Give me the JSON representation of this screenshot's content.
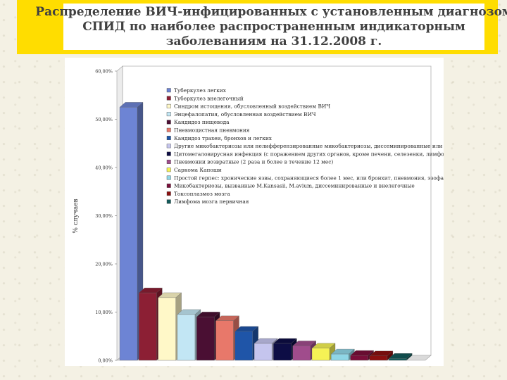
{
  "slide": {
    "title_lines": [
      "Распределение ВИЧ-инфицированных с установленным диагнозом",
      "СПИД по наиболее распространенным индикаторным",
      "заболеваниям на 31.12.2008 г."
    ]
  },
  "chart_data": {
    "type": "bar",
    "ylabel": "% случаев",
    "ylim": [
      0,
      60
    ],
    "yticks": [
      "0,00%",
      "10,00%",
      "20,00%",
      "30,00%",
      "40,00%",
      "50,00%",
      "60,00%"
    ],
    "grid": false,
    "legend_position": "top-right",
    "series": [
      {
        "name": "Туберкулез легких",
        "value": 52.5,
        "color": "#6d84d4"
      },
      {
        "name": "Туберкулез внелегочный",
        "value": 14.0,
        "color": "#8c1f34"
      },
      {
        "name": "Синдром истощения, обусловленный воздействием ВИЧ",
        "value": 13.0,
        "color": "#fff8c8"
      },
      {
        "name": "Энцефалопатия, обусловленная воздействием ВИЧ",
        "value": 9.5,
        "color": "#c2e6f4"
      },
      {
        "name": "Кандидоз пищевода",
        "value": 9.0,
        "color": "#4a0f33"
      },
      {
        "name": "Пневмоцистная пневмония",
        "value": 8.2,
        "color": "#e8786a"
      },
      {
        "name": "Кандидоз трахеи, бронхов и легких",
        "value": 6.0,
        "color": "#1f55a8"
      },
      {
        "name": "Другие микобактериозы или нелифферензированные микобактериозы, диссеминированные или внелегочные",
        "value": 3.5,
        "color": "#c5c5ee"
      },
      {
        "name": "Цитомегаловирусная инфекция (с поражением других органов, кроме печени, селезенки, лимфоузлов)",
        "value": 3.5,
        "color": "#0d0d45"
      },
      {
        "name": "Пневмонии возвратные (2 раза и более в течение 12 мес)",
        "value": 3.0,
        "color": "#a04c8c"
      },
      {
        "name": "Саркома Капоши",
        "value": 2.5,
        "color": "#f5f255"
      },
      {
        "name": "Простой герпес: хронические язвы, сохраняющиеся более 1 мес, или бронхит, пневмония, эзофагит",
        "value": 1.3,
        "color": "#8fd6e6"
      },
      {
        "name": "Микобактериозы, вызванные M.Kansasii, M.avium, диссеминированные и внелегочные",
        "value": 1.0,
        "color": "#7a0f3a"
      },
      {
        "name": "Токсоплазмоз мозга",
        "value": 0.9,
        "color": "#8a1010"
      },
      {
        "name": "Лимфома мозга первичная",
        "value": 0.4,
        "color": "#135a5a"
      }
    ]
  }
}
